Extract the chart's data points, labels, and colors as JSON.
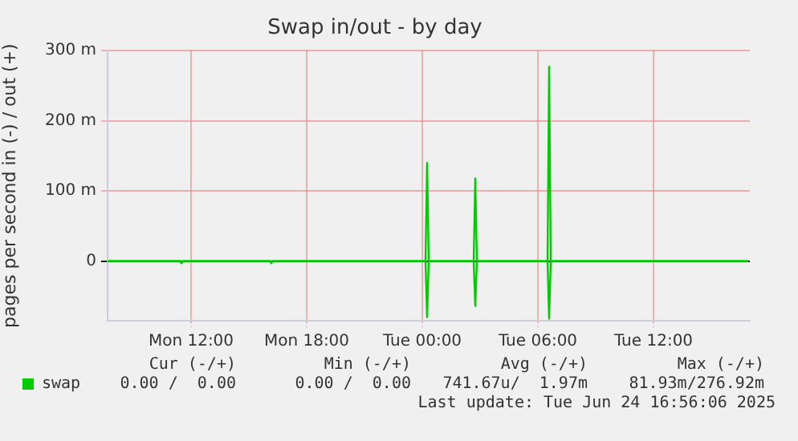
{
  "chart_data": {
    "type": "line",
    "title": "Swap in/out - by day",
    "ylabel": "pages per second in (-) / out (+)",
    "xlim": [
      "2025-06-23T07:40",
      "2025-06-24T17:00"
    ],
    "xticks": [
      {
        "value": "2025-06-23T12:00",
        "label": "Mon 12:00"
      },
      {
        "value": "2025-06-23T18:00",
        "label": "Mon 18:00"
      },
      {
        "value": "2025-06-24T00:00",
        "label": "Tue 00:00"
      },
      {
        "value": "2025-06-24T06:00",
        "label": "Tue 06:00"
      },
      {
        "value": "2025-06-24T12:00",
        "label": "Tue 12:00"
      }
    ],
    "ylim": [
      -85,
      300
    ],
    "yticks": [
      0,
      {
        "value": 100,
        "label": "100 m"
      },
      {
        "value": 200,
        "label": "200 m"
      },
      {
        "value": 300,
        "label": "300 m"
      }
    ],
    "grid": true,
    "legend": "bottom",
    "marker": "none",
    "line_style": "solid",
    "series": [
      {
        "name": "swap",
        "color": "#00cc00",
        "x": [
          "2025-06-23T07:40",
          "2025-06-24T00:10",
          "2025-06-24T00:15",
          "2025-06-24T00:20",
          "2025-06-24T02:40",
          "2025-06-24T02:45",
          "2025-06-24T02:50",
          "2025-06-24T06:30",
          "2025-06-24T06:35",
          "2025-06-24T06:40",
          "2025-06-24T16:55"
        ],
        "values": [
          0,
          0,
          140,
          0,
          0,
          118,
          0,
          0,
          277,
          0,
          0
        ]
      },
      {
        "color": "#00cc00",
        "x": [
          "2025-06-23T07:40",
          "2025-06-23T11:25",
          "2025-06-23T11:30",
          "2025-06-23T11:35",
          "2025-06-23T16:05",
          "2025-06-23T16:10",
          "2025-06-23T16:15",
          "2025-06-24T00:10",
          "2025-06-24T00:15",
          "2025-06-24T00:20",
          "2025-06-24T02:40",
          "2025-06-24T02:45",
          "2025-06-24T02:50",
          "2025-06-24T06:30",
          "2025-06-24T06:35",
          "2025-06-24T06:40",
          "2025-06-24T16:55"
        ],
        "values": [
          0,
          0,
          -3,
          0,
          0,
          -3,
          0,
          0,
          -80,
          0,
          0,
          -64,
          0,
          0,
          -82,
          0,
          0
        ]
      }
    ],
    "annotations": [
      "Cur (-/+)",
      "Min (-/+)",
      "Avg (-/+)",
      "Max (-/+)",
      "0.00 /  0.00",
      "0.00 /  0.00",
      "741.67u/  1.97m",
      "81.93m/276.92m",
      "Last update: Tue Jun 24 16:56:06 2025"
    ]
  }
}
